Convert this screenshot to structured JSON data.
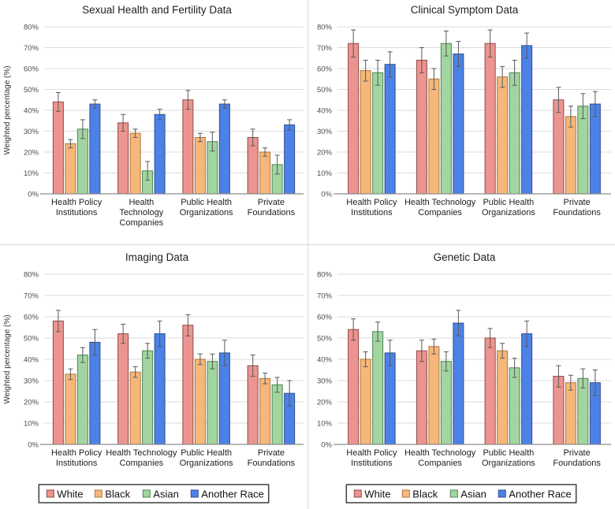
{
  "figure": {
    "background": "#ffffff",
    "divider_color": "#d8d8d8"
  },
  "palette": {
    "series": [
      {
        "name": "White",
        "fill": "#EC948F",
        "stroke": "#8F4A46"
      },
      {
        "name": "Black",
        "fill": "#F5B77A",
        "stroke": "#B0763B"
      },
      {
        "name": "Asian",
        "fill": "#A2D5A0",
        "stroke": "#4E8554"
      },
      {
        "name": "Another Race",
        "fill": "#4C82E6",
        "stroke": "#2F4E8C"
      }
    ],
    "error_bar": "#595959",
    "gridline": "#DBDBDB",
    "axis_line": "#8C8C8C",
    "tick_text": "#4D4D4D",
    "text": "#1F1F1F",
    "legend_border": "#3F3F3F"
  },
  "legend": {
    "entries": [
      "White",
      "Black",
      "Asian",
      "Another Race"
    ]
  },
  "chart_data": [
    {
      "type": "bar",
      "title": "Sexual Health and Fertility Data",
      "ylabel": "Weighted percentage (%)",
      "ylim": [
        0,
        80
      ],
      "ytick_step": 10,
      "ytick_suffix": "%",
      "grid": true,
      "show_legend": false,
      "categories": [
        "Health Policy Institutions",
        "Health Technology Companies",
        "Public Health Organizations",
        "Private Foundations"
      ],
      "category_label_lines": [
        [
          "Health Policy",
          "Institutions"
        ],
        [
          "Health",
          "Technology",
          "Companies"
        ],
        [
          "Public Health",
          "Organizations"
        ],
        [
          "Private",
          "Foundations"
        ]
      ],
      "series": [
        {
          "name": "White",
          "values": [
            44,
            34,
            45,
            27
          ],
          "errors": [
            4.5,
            4,
            4.5,
            4
          ]
        },
        {
          "name": "Black",
          "values": [
            24,
            29,
            27,
            20
          ],
          "errors": [
            2,
            2,
            2,
            2
          ]
        },
        {
          "name": "Asian",
          "values": [
            31,
            11,
            25,
            14
          ],
          "errors": [
            4.5,
            4.5,
            4.5,
            4.5
          ]
        },
        {
          "name": "Another Race",
          "values": [
            43,
            38,
            43,
            33
          ],
          "errors": [
            2,
            2.5,
            2,
            2.5
          ]
        }
      ]
    },
    {
      "type": "bar",
      "title": "Clinical Symptom Data",
      "ylabel": "",
      "ylim": [
        0,
        80
      ],
      "ytick_step": 10,
      "ytick_suffix": "%",
      "grid": true,
      "show_legend": false,
      "categories": [
        "Health Policy Institutions",
        "Health Technology Companies",
        "Public Health Organizations",
        "Private Foundations"
      ],
      "category_label_lines": [
        [
          "Health Policy",
          "Institutions"
        ],
        [
          "Health Technology",
          "Companies"
        ],
        [
          "Public Health",
          "Organizations"
        ],
        [
          "Private",
          "Foundations"
        ]
      ],
      "series": [
        {
          "name": "White",
          "values": [
            72,
            64,
            72,
            45
          ],
          "errors": [
            6.5,
            6,
            6.5,
            6
          ]
        },
        {
          "name": "Black",
          "values": [
            59,
            55,
            56,
            37
          ],
          "errors": [
            5,
            5,
            5,
            5
          ]
        },
        {
          "name": "Asian",
          "values": [
            58,
            72,
            58,
            42
          ],
          "errors": [
            6,
            6,
            6,
            6
          ]
        },
        {
          "name": "Another Race",
          "values": [
            62,
            67,
            71,
            43
          ],
          "errors": [
            6,
            6,
            6,
            6
          ]
        }
      ]
    },
    {
      "type": "bar",
      "title": "Imaging Data",
      "ylabel": "Weighted percentage (%)",
      "ylim": [
        0,
        80
      ],
      "ytick_step": 10,
      "ytick_suffix": "%",
      "grid": true,
      "show_legend": true,
      "categories": [
        "Health Policy Institutions",
        "Health Technology Companies",
        "Public Health Organizations",
        "Private Foundations"
      ],
      "category_label_lines": [
        [
          "Health Policy",
          "Institutions"
        ],
        [
          "Health Technology",
          "Companies"
        ],
        [
          "Public Health",
          "Organizations"
        ],
        [
          "Private",
          "Foundations"
        ]
      ],
      "series": [
        {
          "name": "White",
          "values": [
            58,
            52,
            56,
            37
          ],
          "errors": [
            5,
            4.5,
            5,
            5
          ]
        },
        {
          "name": "Black",
          "values": [
            33,
            34,
            40,
            31
          ],
          "errors": [
            2.5,
            2.5,
            2.5,
            2.5
          ]
        },
        {
          "name": "Asian",
          "values": [
            42,
            44,
            39,
            28
          ],
          "errors": [
            3.5,
            3.5,
            3.5,
            3.5
          ]
        },
        {
          "name": "Another Race",
          "values": [
            48,
            52,
            43,
            24
          ],
          "errors": [
            6,
            6,
            6,
            6
          ]
        }
      ]
    },
    {
      "type": "bar",
      "title": "Genetic Data",
      "ylabel": "",
      "ylim": [
        0,
        80
      ],
      "ytick_step": 10,
      "ytick_suffix": "%",
      "grid": true,
      "show_legend": true,
      "categories": [
        "Health Policy Institutions",
        "Health Technology Companies",
        "Public Health Organizations",
        "Private Foundations"
      ],
      "category_label_lines": [
        [
          "Health Policy",
          "Institutions"
        ],
        [
          "Health Technology",
          "Companies"
        ],
        [
          "Public Health",
          "Organizations"
        ],
        [
          "Private",
          "Foundations"
        ]
      ],
      "series": [
        {
          "name": "White",
          "values": [
            54,
            44,
            50,
            32
          ],
          "errors": [
            5,
            5,
            4.5,
            5
          ]
        },
        {
          "name": "Black",
          "values": [
            40,
            46,
            44,
            29
          ],
          "errors": [
            3.5,
            3.5,
            3.5,
            3.5
          ]
        },
        {
          "name": "Asian",
          "values": [
            53,
            39,
            36,
            31
          ],
          "errors": [
            4.5,
            4.5,
            4.5,
            4.5
          ]
        },
        {
          "name": "Another Race",
          "values": [
            43,
            57,
            52,
            29
          ],
          "errors": [
            6,
            6,
            6,
            6
          ]
        }
      ]
    }
  ]
}
